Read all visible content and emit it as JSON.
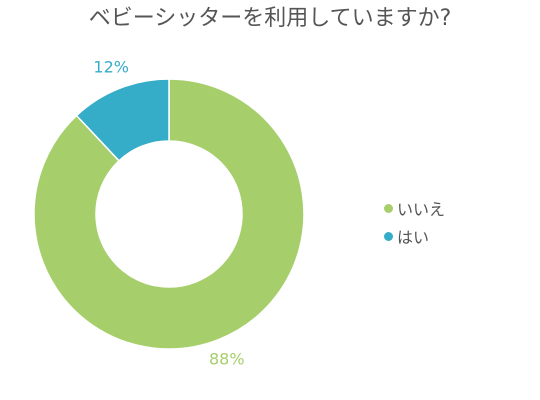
{
  "chart_data": {
    "type": "pie",
    "title": "ベビーシッターを利用していますか?",
    "categories": [
      "いいえ",
      "はい"
    ],
    "values": [
      88,
      12
    ],
    "value_labels": [
      "88%",
      "12%"
    ],
    "colors": [
      "#a6cf6c",
      "#35acc8"
    ],
    "legend_position": "right",
    "donut": true
  }
}
